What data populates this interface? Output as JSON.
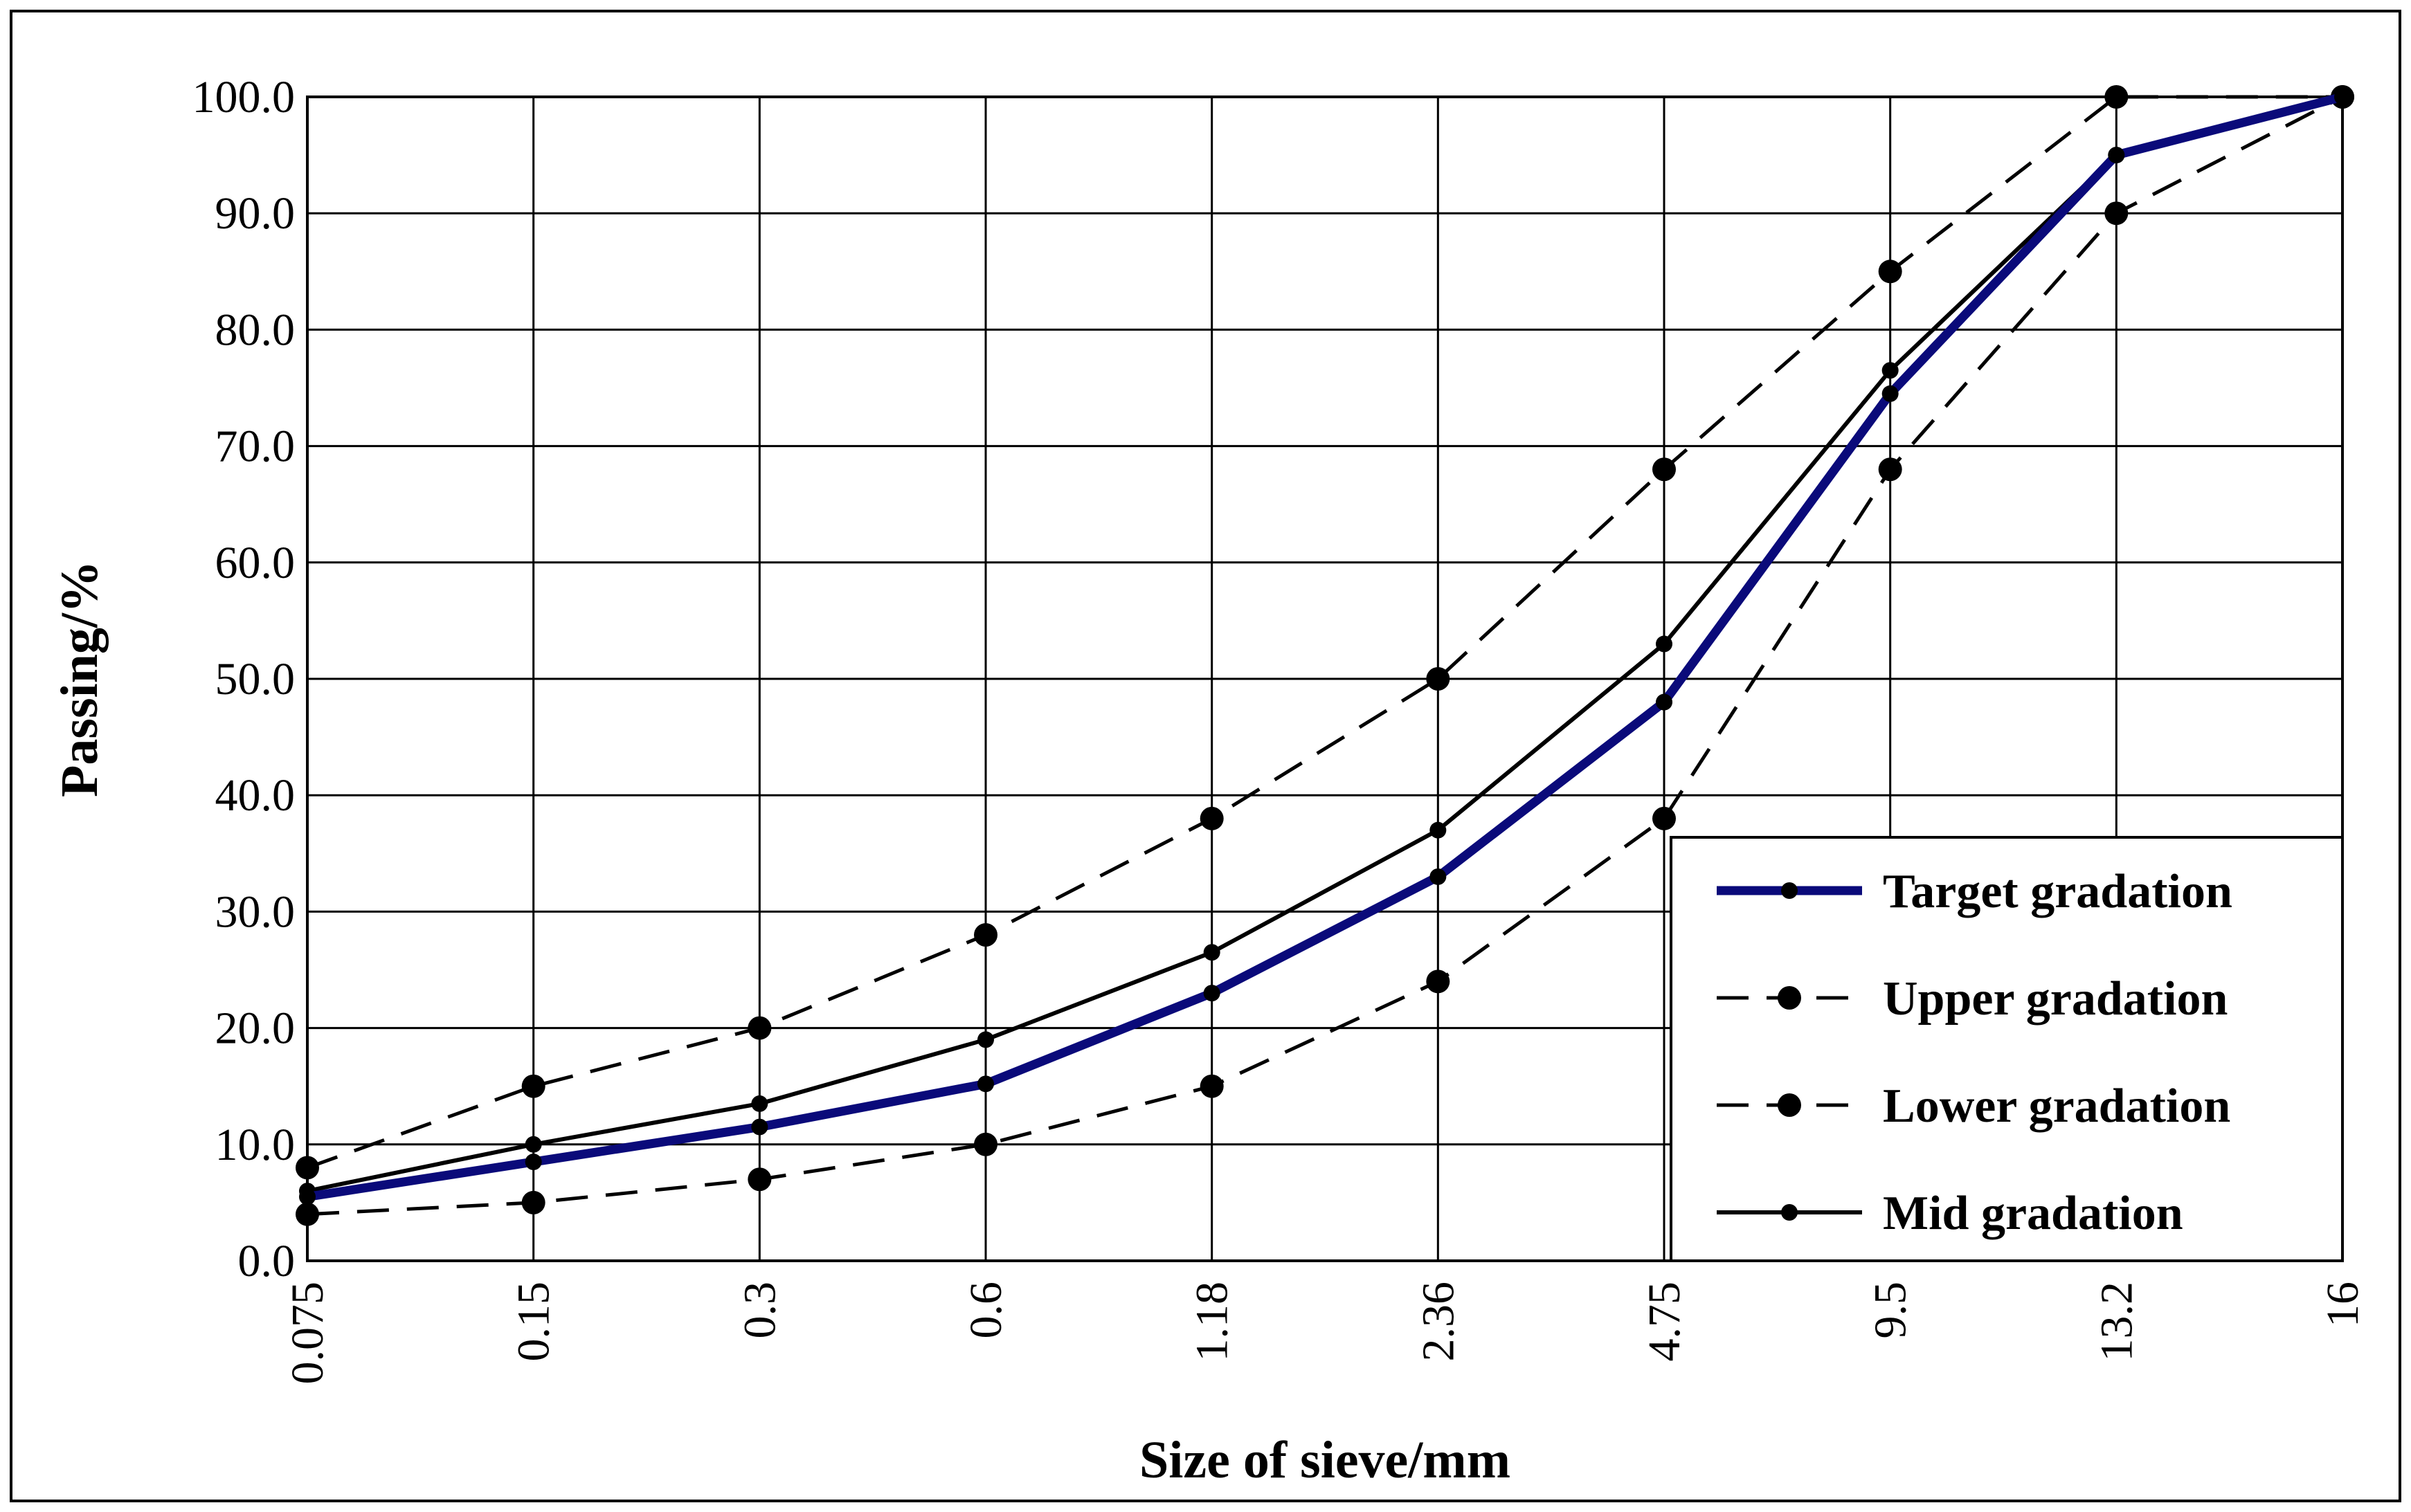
{
  "chart_data": {
    "type": "line",
    "xlabel": "Size of sieve/mm",
    "ylabel": "Passing/%",
    "categories": [
      "0.075",
      "0.15",
      "0.3",
      "0.6",
      "1.18",
      "2.36",
      "4.75",
      "9.5",
      "13.2",
      "16"
    ],
    "ylim": [
      0,
      100
    ],
    "yticks": [
      "0.0",
      "10.0",
      "20.0",
      "30.0",
      "40.0",
      "50.0",
      "60.0",
      "70.0",
      "80.0",
      "90.0",
      "100.0"
    ],
    "grid": true,
    "legend_position": "bottom-right",
    "series": [
      {
        "name": "Target gradation",
        "values": [
          5.5,
          8.5,
          11.5,
          15.2,
          23.0,
          33.0,
          48.0,
          74.5,
          95.0,
          100.0
        ],
        "color": "#0a0a7a",
        "style": "solid-thick",
        "marker": "small"
      },
      {
        "name": "Upper gradation",
        "values": [
          8.0,
          15.0,
          20.0,
          28.0,
          38.0,
          50.0,
          68.0,
          85.0,
          100.0,
          100.0
        ],
        "color": "#000000",
        "style": "dashed",
        "marker": "large"
      },
      {
        "name": "Lower gradation",
        "values": [
          4.0,
          5.0,
          7.0,
          10.0,
          15.0,
          24.0,
          38.0,
          68.0,
          90.0,
          100.0
        ],
        "color": "#000000",
        "style": "dashed",
        "marker": "large"
      },
      {
        "name": "Mid gradation",
        "values": [
          6.0,
          10.0,
          13.5,
          19.0,
          26.5,
          37.0,
          53.0,
          76.5,
          95.0,
          100.0
        ],
        "color": "#000000",
        "style": "solid",
        "marker": "small"
      }
    ]
  }
}
